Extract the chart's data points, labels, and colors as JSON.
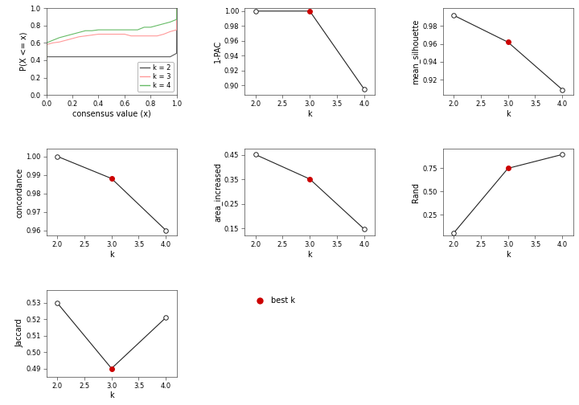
{
  "ecdf": {
    "k2": {
      "x": [
        0.0,
        0.001,
        0.05,
        0.1,
        0.15,
        0.2,
        0.25,
        0.3,
        0.35,
        0.4,
        0.45,
        0.5,
        0.55,
        0.6,
        0.65,
        0.7,
        0.75,
        0.8,
        0.85,
        0.9,
        0.95,
        0.999,
        1.0
      ],
      "y": [
        0.0,
        0.44,
        0.44,
        0.44,
        0.44,
        0.44,
        0.44,
        0.44,
        0.44,
        0.44,
        0.44,
        0.44,
        0.44,
        0.44,
        0.44,
        0.44,
        0.44,
        0.44,
        0.44,
        0.44,
        0.44,
        0.48,
        1.0
      ],
      "color": "#555555"
    },
    "k3": {
      "x": [
        0.0,
        0.001,
        0.05,
        0.1,
        0.15,
        0.2,
        0.25,
        0.3,
        0.35,
        0.4,
        0.45,
        0.5,
        0.55,
        0.6,
        0.65,
        0.7,
        0.75,
        0.8,
        0.85,
        0.9,
        0.95,
        0.999,
        1.0
      ],
      "y": [
        0.0,
        0.58,
        0.6,
        0.61,
        0.63,
        0.65,
        0.67,
        0.68,
        0.69,
        0.7,
        0.7,
        0.7,
        0.7,
        0.7,
        0.68,
        0.68,
        0.68,
        0.68,
        0.68,
        0.7,
        0.73,
        0.75,
        1.0
      ],
      "color": "#FF9999"
    },
    "k4": {
      "x": [
        0.0,
        0.001,
        0.05,
        0.1,
        0.15,
        0.2,
        0.25,
        0.3,
        0.35,
        0.4,
        0.45,
        0.5,
        0.55,
        0.6,
        0.65,
        0.7,
        0.75,
        0.8,
        0.85,
        0.9,
        0.95,
        0.999,
        1.0
      ],
      "y": [
        0.0,
        0.6,
        0.63,
        0.66,
        0.68,
        0.7,
        0.72,
        0.74,
        0.74,
        0.75,
        0.75,
        0.75,
        0.75,
        0.75,
        0.75,
        0.75,
        0.78,
        0.78,
        0.8,
        0.82,
        0.84,
        0.87,
        1.0
      ],
      "color": "#66BB66"
    }
  },
  "pac": {
    "k": [
      2,
      3,
      4
    ],
    "values": [
      1.0,
      1.0,
      0.895
    ],
    "best_k": 3,
    "ylabel": "1-PAC",
    "yticks": [
      0.9,
      0.92,
      0.94,
      0.96,
      0.98,
      1.0
    ],
    "ylim": [
      0.887,
      1.004
    ]
  },
  "silhouette": {
    "k": [
      2,
      3,
      4
    ],
    "values": [
      0.992,
      0.962,
      0.909
    ],
    "best_k": 3,
    "ylabel": "mean_silhouette",
    "yticks": [
      0.92,
      0.94,
      0.96,
      0.98
    ],
    "ylim": [
      0.903,
      1.0
    ]
  },
  "concordance": {
    "k": [
      2,
      3,
      4
    ],
    "values": [
      1.0,
      0.988,
      0.96
    ],
    "best_k": 3,
    "ylabel": "concordance",
    "yticks": [
      0.96,
      0.97,
      0.98,
      0.99,
      1.0
    ],
    "ylim": [
      0.957,
      1.004
    ]
  },
  "area_increased": {
    "k": [
      2,
      3,
      4
    ],
    "values": [
      0.452,
      0.352,
      0.148
    ],
    "best_k": 3,
    "ylabel": "area_increased",
    "yticks": [
      0.15,
      0.25,
      0.35,
      0.45
    ],
    "ylim": [
      0.12,
      0.475
    ]
  },
  "rand": {
    "k": [
      2,
      3,
      4
    ],
    "values": [
      0.05,
      0.75,
      0.9
    ],
    "best_k": 3,
    "ylabel": "Rand",
    "yticks": [
      0.25,
      0.5,
      0.75
    ],
    "ylim": [
      0.02,
      0.96
    ]
  },
  "jaccard": {
    "k": [
      2,
      3,
      4
    ],
    "values": [
      0.53,
      0.49,
      0.521
    ],
    "best_k": 3,
    "ylabel": "Jaccard",
    "yticks": [
      0.49,
      0.5,
      0.51,
      0.52,
      0.53
    ],
    "ylim": [
      0.485,
      0.538
    ]
  },
  "line_color": "#222222",
  "best_k_color": "#CC0000",
  "open_dot_color": "#222222",
  "bg_color": "#FFFFFF",
  "font_size": 7,
  "xlabel": "k"
}
